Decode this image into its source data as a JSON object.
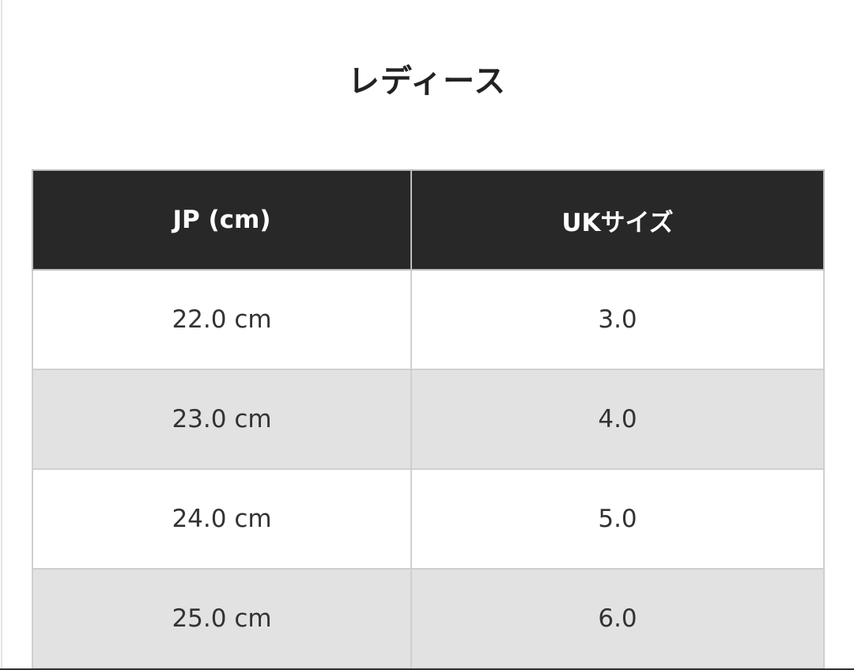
{
  "title": "レディース",
  "table": {
    "headers": [
      "JP (cm)",
      "UKサイズ"
    ],
    "rows": [
      [
        "22.0 cm",
        "3.0"
      ],
      [
        "23.0 cm",
        "4.0"
      ],
      [
        "24.0 cm",
        "5.0"
      ],
      [
        "25.0 cm",
        "6.0"
      ]
    ]
  },
  "colors": {
    "header_bg": "#282828",
    "alt_row_bg": "#e2e2e2"
  }
}
